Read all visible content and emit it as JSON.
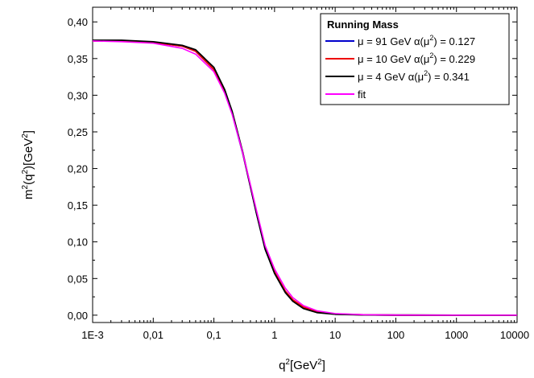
{
  "chart_data": {
    "type": "line",
    "title": "",
    "xlabel": "q²[GeV²]",
    "ylabel": "m²(q²)[GeV²]",
    "x_scale": "log",
    "xlim": [
      0.001,
      10000
    ],
    "ylim": [
      -0.01,
      0.42
    ],
    "x_ticks": [
      0.001,
      0.01,
      0.1,
      1,
      10,
      100,
      1000,
      10000
    ],
    "x_tick_labels": [
      "1E-3",
      "0,01",
      "0,1",
      "1",
      "10",
      "100",
      "1000",
      "10000"
    ],
    "y_ticks": [
      0.0,
      0.05,
      0.1,
      0.15,
      0.2,
      0.25,
      0.3,
      0.35,
      0.4
    ],
    "y_tick_labels": [
      "0,00",
      "0,05",
      "0,10",
      "0,15",
      "0,20",
      "0,25",
      "0,30",
      "0,35",
      "0,40"
    ],
    "grid": false,
    "legend": {
      "title": "Running Mass",
      "placement": "top-right"
    },
    "series": [
      {
        "name": "μ = 91 GeV  α(μ²) = 0.127",
        "label_parts": [
          "μ = 91 GeV ",
          "α(μ",
          "2",
          ") = 0.127"
        ],
        "color": "#0000cc",
        "x": [
          0.001,
          0.003,
          0.01,
          0.03,
          0.05,
          0.1,
          0.15,
          0.2,
          0.3,
          0.4,
          0.5,
          0.7,
          1,
          1.5,
          2,
          3,
          5,
          10,
          30,
          100,
          1000,
          10000
        ],
        "y": [
          0.374,
          0.374,
          0.372,
          0.367,
          0.36,
          0.335,
          0.305,
          0.275,
          0.22,
          0.175,
          0.14,
          0.09,
          0.058,
          0.032,
          0.02,
          0.01,
          0.004,
          0.0015,
          0.0004,
          0.0001,
          0.0,
          0.0
        ]
      },
      {
        "name": "μ = 10 GeV  α(μ²) = 0.229",
        "label_parts": [
          "μ = 10 GeV ",
          "α(μ",
          "2",
          ") = 0.229"
        ],
        "color": "#ee0000",
        "x": [
          0.001,
          0.003,
          0.01,
          0.03,
          0.05,
          0.1,
          0.15,
          0.2,
          0.3,
          0.4,
          0.5,
          0.7,
          1,
          1.5,
          2,
          3,
          5,
          10,
          30,
          100,
          1000,
          10000
        ],
        "y": [
          0.374,
          0.374,
          0.372,
          0.367,
          0.36,
          0.335,
          0.305,
          0.276,
          0.221,
          0.176,
          0.141,
          0.091,
          0.059,
          0.033,
          0.021,
          0.011,
          0.0045,
          0.0017,
          0.0005,
          0.0001,
          0.0,
          0.0
        ]
      },
      {
        "name": "μ = 4 GeV  α(μ²) = 0.341",
        "label_parts": [
          "μ =  4 GeV  ",
          "α(μ",
          "2",
          ") = 0.341"
        ],
        "color": "#000000",
        "x": [
          0.001,
          0.003,
          0.01,
          0.03,
          0.05,
          0.1,
          0.15,
          0.2,
          0.3,
          0.4,
          0.5,
          0.7,
          1,
          1.5,
          2,
          3,
          5,
          10,
          30,
          100,
          1000,
          10000
        ],
        "y": [
          0.375,
          0.375,
          0.373,
          0.368,
          0.362,
          0.338,
          0.308,
          0.278,
          0.222,
          0.176,
          0.14,
          0.09,
          0.057,
          0.031,
          0.019,
          0.009,
          0.0035,
          0.0012,
          0.0003,
          0.0001,
          0.0,
          0.0
        ]
      },
      {
        "name": "fit",
        "label_parts": [
          "fit",
          "",
          "",
          ""
        ],
        "color": "#ff00ff",
        "x": [
          0.001,
          0.003,
          0.01,
          0.03,
          0.05,
          0.1,
          0.15,
          0.2,
          0.3,
          0.4,
          0.5,
          0.7,
          1,
          1.5,
          2,
          3,
          5,
          10,
          30,
          100,
          1000,
          10000
        ],
        "y": [
          0.374,
          0.373,
          0.371,
          0.364,
          0.356,
          0.332,
          0.303,
          0.274,
          0.221,
          0.178,
          0.144,
          0.095,
          0.063,
          0.037,
          0.024,
          0.013,
          0.006,
          0.0022,
          0.0006,
          0.0002,
          0.0,
          0.0
        ]
      }
    ]
  }
}
